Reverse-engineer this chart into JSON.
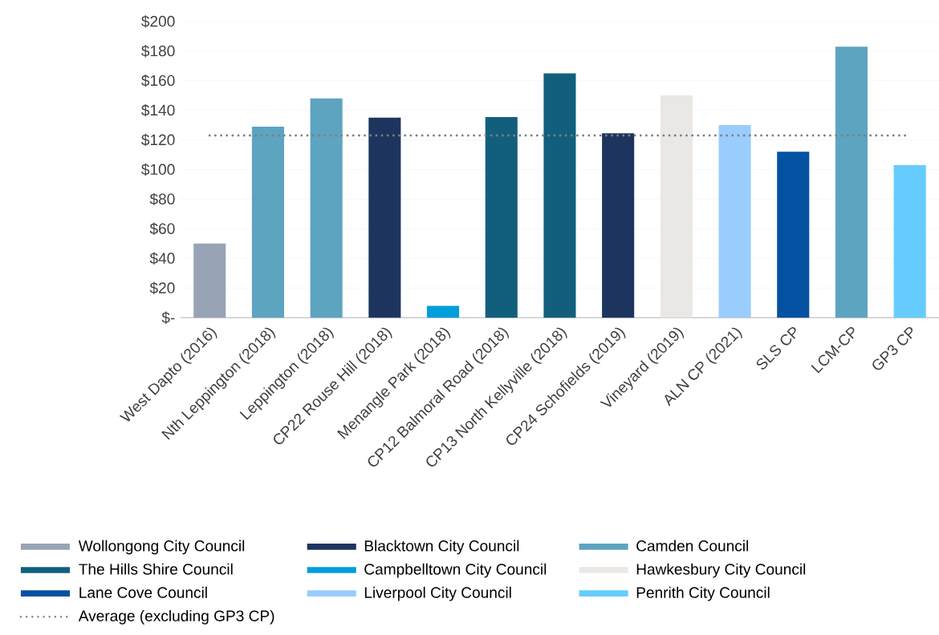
{
  "chart_data": {
    "type": "bar",
    "categories": [
      "West Dapto (2016)",
      "Nth Leppington (2018)",
      "Leppington (2018)",
      "CP22 Rouse Hill (2018)",
      "Menangle Park (2018)",
      "CP12 Balmoral Road (2018)",
      "CP13 North Kellyville (2018)",
      "CP24 Schofields (2019)",
      "Vineyard (2019)",
      "ALN CP (2021)",
      "SLS CP",
      "LCM-CP",
      "GP3 CP"
    ],
    "series": [
      {
        "name": "Wollongong City Council",
        "color": "#98a4b6",
        "values": [
          50,
          null,
          null,
          null,
          null,
          null,
          null,
          null,
          null,
          null,
          null,
          null,
          null
        ]
      },
      {
        "name": "Blacktown City Council",
        "color": "#1d355e",
        "values": [
          null,
          null,
          null,
          135,
          null,
          null,
          null,
          124.5,
          null,
          null,
          null,
          null,
          null
        ]
      },
      {
        "name": "Camden Council",
        "color": "#5da4c1",
        "values": [
          null,
          129,
          148,
          null,
          null,
          null,
          null,
          null,
          null,
          null,
          null,
          183,
          null
        ]
      },
      {
        "name": "The Hills Shire Council",
        "color": "#125f7d",
        "values": [
          null,
          null,
          null,
          null,
          null,
          135.5,
          165,
          null,
          null,
          null,
          null,
          null,
          null
        ]
      },
      {
        "name": "Campbelltown City Council",
        "color": "#009edb",
        "values": [
          null,
          null,
          null,
          null,
          8,
          null,
          null,
          null,
          null,
          null,
          null,
          null,
          null
        ]
      },
      {
        "name": "Hawkesbury City Council",
        "color": "#ebe7e4",
        "values": [
          null,
          null,
          null,
          null,
          null,
          null,
          null,
          null,
          150,
          null,
          null,
          null,
          null
        ]
      },
      {
        "name": "Lane Cove Council",
        "color": "#0352a2",
        "values": [
          null,
          null,
          null,
          null,
          null,
          null,
          null,
          null,
          null,
          null,
          112,
          null,
          null
        ]
      },
      {
        "name": "Liverpool City Council",
        "color": "#9accfe",
        "values": [
          null,
          null,
          null,
          null,
          null,
          null,
          null,
          null,
          null,
          130,
          null,
          null,
          null
        ]
      },
      {
        "name": "Penrith City Council",
        "color": "#66ccfe",
        "values": [
          null,
          null,
          null,
          null,
          null,
          null,
          null,
          null,
          null,
          null,
          null,
          null,
          103
        ]
      }
    ],
    "ref_lines": [
      {
        "axis": "y",
        "value": 123,
        "label": "Average (excluding GP3 CP)",
        "color": "#7f7f7f",
        "line_style": "dotted"
      }
    ],
    "ylim": [
      0,
      200
    ],
    "yticks": [
      {
        "value": 0,
        "label": "$-"
      },
      {
        "value": 20,
        "label": "$20"
      },
      {
        "value": 40,
        "label": "$40"
      },
      {
        "value": 60,
        "label": "$60"
      },
      {
        "value": 80,
        "label": "$80"
      },
      {
        "value": 100,
        "label": "$100"
      },
      {
        "value": 120,
        "label": "$120"
      },
      {
        "value": 140,
        "label": "$140"
      },
      {
        "value": 160,
        "label": "$160"
      },
      {
        "value": 180,
        "label": "$180"
      },
      {
        "value": 200,
        "label": "$200"
      }
    ],
    "grid": "y",
    "legend": "bottom"
  }
}
